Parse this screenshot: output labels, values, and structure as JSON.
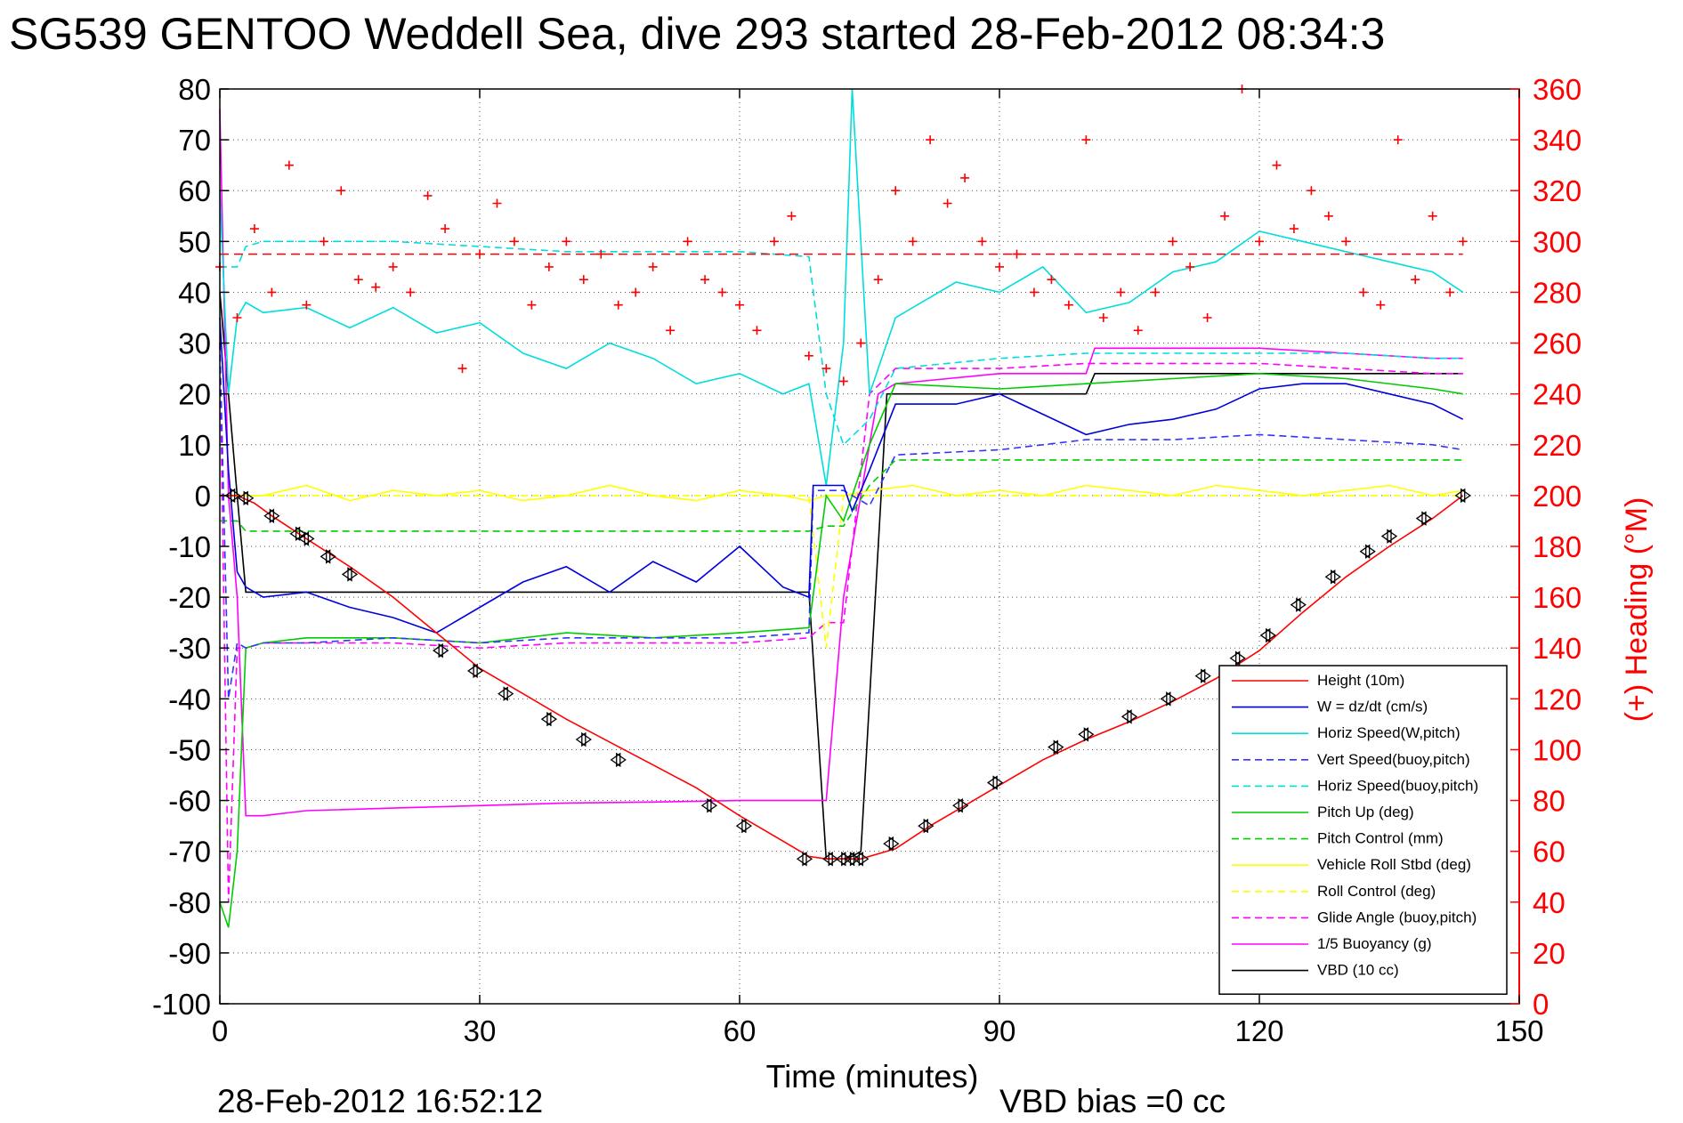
{
  "window": {
    "title": "SG539 GENTOO Weddell Sea, dive 293 started 28-Feb-2012 08:34:3",
    "footer_timestamp": "28-Feb-2012 16:52:12",
    "footer_vbd_bias": "VBD bias =0 cc"
  },
  "chart_data": {
    "type": "line",
    "title": "SG539 GENTOO Weddell Sea, dive 293 started 28-Feb-2012 08:34:3",
    "xlabel": "Time (minutes)",
    "ylabel": "",
    "ylabel_right": "(+) Heading (°M)",
    "xlim": [
      0,
      150
    ],
    "ylim": [
      -100,
      80
    ],
    "ylim_right": [
      0,
      360
    ],
    "xticks": [
      "0",
      "30",
      "60",
      "90",
      "120",
      "150"
    ],
    "yticks": [
      "80",
      "70",
      "60",
      "50",
      "40",
      "30",
      "20",
      "10",
      "0",
      "-10",
      "-20",
      "-30",
      "-40",
      "-50",
      "-60",
      "-70",
      "-80",
      "-90",
      "-100"
    ],
    "yticks_right": [
      "360",
      "340",
      "320",
      "300",
      "280",
      "260",
      "240",
      "220",
      "200",
      "180",
      "160",
      "140",
      "120",
      "100",
      "80",
      "60",
      "40",
      "20",
      "0"
    ],
    "grid": true,
    "legend_position": "bottom-right",
    "heading_reference_line": 295,
    "series": [
      {
        "name": "Height (10m)",
        "color": "#ff0000",
        "style": "solid",
        "x": [
          0,
          2,
          4,
          6,
          10,
          15,
          20,
          25,
          30,
          35,
          40,
          45,
          50,
          55,
          60,
          65,
          68,
          70,
          72,
          74,
          76,
          78,
          82,
          86,
          90,
          95,
          100,
          105,
          110,
          115,
          120,
          125,
          130,
          135,
          140,
          143.5
        ],
        "y": [
          0,
          0,
          -1.5,
          -4,
          -8.5,
          -14,
          -20,
          -27,
          -34,
          -39,
          -44,
          -48.5,
          -53,
          -57.5,
          -63,
          -68,
          -71,
          -71.5,
          -71.5,
          -71.5,
          -70.5,
          -69.5,
          -65,
          -61,
          -57,
          -52,
          -48,
          -44.5,
          -40.5,
          -36,
          -30.5,
          -23,
          -16,
          -10,
          -4.5,
          0
        ]
      },
      {
        "name": "W = dz/dt (cm/s)",
        "color": "#0000dd",
        "style": "solid",
        "x": [
          0,
          1,
          2,
          3,
          5,
          10,
          15,
          20,
          25,
          30,
          35,
          40,
          45,
          50,
          55,
          60,
          65,
          68,
          68.5,
          72,
          73,
          75,
          78,
          85,
          90,
          95,
          100,
          105,
          110,
          115,
          120,
          125,
          130,
          135,
          140,
          143.5
        ],
        "y": [
          35,
          5,
          -15,
          -18,
          -20,
          -19,
          -22,
          -24,
          -27,
          -22,
          -17,
          -14,
          -19,
          -13,
          -17,
          -10,
          -18,
          -20,
          2,
          2,
          -3,
          5,
          18,
          18,
          20,
          16,
          12,
          14,
          15,
          17,
          21,
          22,
          22,
          20,
          18,
          15
        ]
      },
      {
        "name": "Horiz Speed(W,pitch)",
        "color": "#00dddd",
        "style": "solid",
        "x": [
          0,
          1,
          2,
          3,
          5,
          10,
          15,
          20,
          25,
          30,
          35,
          40,
          45,
          50,
          55,
          60,
          65,
          68,
          70,
          72,
          73,
          75,
          78,
          85,
          90,
          95,
          100,
          105,
          110,
          115,
          120,
          125,
          130,
          135,
          140,
          143.5
        ],
        "y": [
          60,
          20,
          35,
          38,
          36,
          37,
          33,
          37,
          32,
          34,
          28,
          25,
          30,
          27,
          22,
          24,
          20,
          22,
          2,
          30,
          80,
          20,
          35,
          42,
          40,
          45,
          36,
          38,
          44,
          46,
          52,
          50,
          48,
          46,
          44,
          40
        ]
      },
      {
        "name": "Vert Speed(buoy,pitch)",
        "color": "#3333ff",
        "style": "dashed",
        "x": [
          0,
          1,
          2,
          3,
          5,
          10,
          20,
          30,
          40,
          50,
          60,
          68,
          68.5,
          72,
          75,
          78,
          90,
          100,
          110,
          120,
          130,
          140,
          143.5
        ],
        "y": [
          30,
          -40,
          -29,
          -30,
          -29,
          -29,
          -28,
          -29,
          -28,
          -28,
          -28,
          -27,
          1,
          1,
          -2,
          8,
          9,
          11,
          11,
          12,
          11,
          10,
          9
        ]
      },
      {
        "name": "Horiz Speed(buoy,pitch)",
        "color": "#00dddd",
        "style": "dashed",
        "x": [
          0,
          2,
          3,
          5,
          10,
          20,
          30,
          40,
          50,
          60,
          68,
          70,
          72,
          75,
          78,
          90,
          100,
          110,
          120,
          130,
          140,
          143.5
        ],
        "y": [
          45,
          45,
          49,
          50,
          50,
          50,
          49,
          48,
          48,
          48,
          47,
          20,
          10,
          15,
          25,
          27,
          28,
          28,
          28,
          28,
          27,
          27
        ]
      },
      {
        "name": "Pitch Up (deg)",
        "color": "#00cc00",
        "style": "solid",
        "x": [
          0,
          1,
          2,
          3,
          5,
          10,
          20,
          30,
          40,
          50,
          60,
          68,
          70,
          72,
          75,
          78,
          90,
          100,
          110,
          120,
          130,
          140,
          143.5
        ],
        "y": [
          -80,
          -85,
          -70,
          -30,
          -29,
          -28,
          -28,
          -29,
          -27,
          -28,
          -27,
          -26,
          0,
          -5,
          10,
          22,
          21,
          22,
          23,
          24,
          23,
          21,
          20
        ]
      },
      {
        "name": "Pitch Control (mm)",
        "color": "#00cc00",
        "style": "dashed",
        "x": [
          0,
          2,
          3,
          10,
          20,
          30,
          40,
          50,
          60,
          68,
          70,
          72,
          75,
          78,
          90,
          100,
          110,
          120,
          130,
          140,
          143.5
        ],
        "y": [
          -5,
          -5,
          -7,
          -7,
          -7,
          -7,
          -7,
          -7,
          -7,
          -7,
          -6,
          -6,
          2,
          7,
          7,
          7,
          7,
          7,
          7,
          7,
          7
        ]
      },
      {
        "name": "Vehicle Roll Stbd (deg)",
        "color": "#ffff00",
        "style": "solid",
        "x": [
          0,
          5,
          10,
          15,
          20,
          25,
          30,
          35,
          40,
          45,
          50,
          55,
          60,
          65,
          68,
          70,
          72,
          75,
          80,
          85,
          90,
          95,
          100,
          105,
          110,
          115,
          120,
          125,
          130,
          135,
          140,
          143.5
        ],
        "y": [
          0,
          0,
          2,
          -1,
          1,
          0,
          1,
          -1,
          0,
          2,
          0,
          -1,
          1,
          0,
          -1,
          0,
          0,
          1,
          2,
          0,
          1,
          0,
          2,
          1,
          0,
          2,
          1,
          0,
          1,
          2,
          0,
          1
        ]
      },
      {
        "name": "Roll Control (deg)",
        "color": "#ffff00",
        "style": "dashed",
        "x": [
          0,
          10,
          20,
          30,
          40,
          50,
          60,
          68,
          70,
          72,
          80,
          90,
          100,
          110,
          120,
          130,
          140,
          143.5
        ],
        "y": [
          0,
          0,
          0,
          0,
          0,
          0,
          0,
          0,
          -30,
          0,
          0,
          0,
          0,
          0,
          0,
          0,
          0,
          0
        ]
      },
      {
        "name": "Glide Angle (buoy,pitch)",
        "color": "#ff00ff",
        "style": "dashed",
        "x": [
          0,
          1,
          2,
          3,
          5,
          10,
          20,
          30,
          40,
          50,
          60,
          68,
          70,
          72,
          75,
          78,
          90,
          100,
          110,
          120,
          130,
          140,
          143.5
        ],
        "y": [
          30,
          -80,
          -30,
          -30,
          -29,
          -29,
          -29,
          -30,
          -29,
          -29,
          -29,
          -28,
          -25,
          -25,
          20,
          25,
          25,
          26,
          26,
          26,
          25,
          24,
          24
        ]
      },
      {
        "name": "1/5 Buoyancy (g)",
        "color": "#ff00ff",
        "style": "solid",
        "x": [
          0,
          1,
          2,
          3,
          5,
          10,
          20,
          30,
          40,
          50,
          60,
          68,
          70,
          72,
          76,
          78,
          90,
          100,
          101,
          110,
          120,
          130,
          140,
          143.5
        ],
        "y": [
          76,
          0,
          -20,
          -63,
          -63,
          -62,
          -61.5,
          -61,
          -60.5,
          -60.3,
          -60,
          -60,
          -60,
          -20,
          20,
          22,
          24,
          24,
          29,
          29,
          29,
          28,
          27,
          27
        ]
      },
      {
        "name": "VBD (10 cc)",
        "color": "#000000",
        "style": "solid",
        "x": [
          0,
          1,
          2,
          3,
          10,
          20,
          30,
          40,
          50,
          60,
          67,
          68,
          70,
          72,
          73,
          74,
          77,
          78,
          100,
          101,
          143.5
        ],
        "y": [
          40,
          20,
          0,
          -19,
          -19,
          -19,
          -19,
          -19,
          -19,
          -19,
          -19,
          -19,
          -71.5,
          -71.5,
          -71,
          -70,
          20,
          20,
          20,
          24,
          24
        ]
      }
    ],
    "heading_series": {
      "name": "(+) Heading",
      "color": "#ff0000",
      "marker": "+",
      "x": [
        0,
        2,
        4,
        6,
        8,
        10,
        12,
        14,
        16,
        18,
        20,
        22,
        24,
        26,
        28,
        30,
        32,
        34,
        36,
        38,
        40,
        42,
        44,
        46,
        48,
        50,
        52,
        54,
        56,
        58,
        60,
        62,
        64,
        66,
        68,
        70,
        72,
        74,
        76,
        78,
        80,
        82,
        84,
        86,
        88,
        90,
        92,
        94,
        96,
        98,
        100,
        102,
        104,
        106,
        108,
        110,
        112,
        114,
        116,
        118,
        120,
        122,
        124,
        126,
        128,
        130,
        132,
        134,
        136,
        138,
        140,
        142,
        143.5
      ],
      "y": [
        290,
        270,
        305,
        280,
        330,
        275,
        300,
        320,
        285,
        282,
        290,
        280,
        318,
        305,
        250,
        295,
        315,
        300,
        275,
        290,
        300,
        285,
        295,
        275,
        280,
        290,
        265,
        300,
        285,
        280,
        275,
        265,
        300,
        310,
        255,
        250,
        245,
        260,
        285,
        320,
        300,
        340,
        315,
        325,
        300,
        290,
        295,
        280,
        285,
        275,
        340,
        270,
        280,
        265,
        280,
        300,
        290,
        270,
        310,
        360,
        300,
        330,
        305,
        320,
        310,
        300,
        280,
        275,
        340,
        285,
        310,
        280,
        300
      ]
    },
    "dive_markers": {
      "marker": "triangles",
      "x": [
        1.5,
        3,
        6,
        9,
        10,
        12.5,
        15,
        25.5,
        29.5,
        33,
        38,
        42,
        46,
        56.5,
        60.5,
        67.5,
        70.5,
        72,
        73,
        74,
        77.5,
        81.5,
        85.5,
        89.5,
        96.5,
        100,
        105,
        109.5,
        113.5,
        117.5,
        121,
        124.5,
        128.5,
        132.5,
        135,
        139,
        143.5
      ],
      "y": [
        0,
        -0.5,
        -4,
        -7.5,
        -8.5,
        -12,
        -15.5,
        -30.5,
        -34.5,
        -39,
        -44,
        -48,
        -52,
        -61,
        -65,
        -71.5,
        -71.5,
        -71.5,
        -71.5,
        -71.5,
        -68.5,
        -65,
        -61,
        -56.5,
        -49.5,
        -47,
        -43.5,
        -40,
        -35.5,
        -32,
        -27.5,
        -21.5,
        -16,
        -11,
        -8,
        -4.5,
        0
      ]
    }
  }
}
